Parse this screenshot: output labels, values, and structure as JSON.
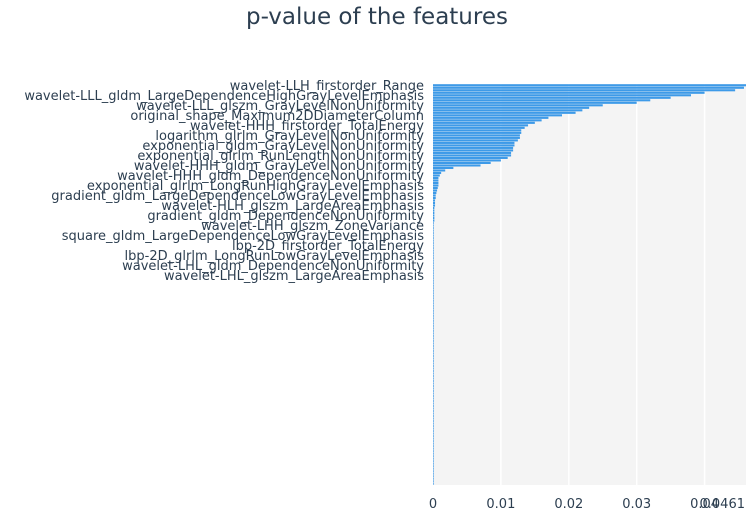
{
  "chart_data": {
    "type": "bar",
    "orientation": "horizontal",
    "title": "p-value of the features",
    "xlabel": "",
    "ylabel": "",
    "xlim": [
      0,
      0.0461
    ],
    "x_ticks": [
      "0",
      "0.01",
      "0.02",
      "0.03",
      "0.04",
      "0.0461"
    ],
    "x_tick_values": [
      0,
      0.01,
      0.02,
      0.03,
      0.04,
      0.0461
    ],
    "grid": "vertical",
    "colors": {
      "bar": "#3d9ae8",
      "plot_bg": "#f4f4f4",
      "grid": "#ffffff",
      "text": "#2c3e50"
    },
    "labeled_features": [
      "wavelet-LLH_firstorder_Range",
      "wavelet-LLL_gldm_LargeDependenceHighGrayLevelEmphasis",
      "wavelet-LLL_glszm_GrayLevelNonUniformity",
      "original_shape_Maximum2DDiameterColumn",
      "wavelet-HHH_firstorder_TotalEnergy",
      "logarithm_glrlm_GrayLevelNonUniformity",
      "exponential_gldm_GrayLevelNonUniformity",
      "exponential_glrlm_RunLengthNonUniformity",
      "wavelet-HHH_gldm_GrayLevelNonUniformity",
      "wavelet-HHH_gldm_DependenceNonUniformity",
      "exponential_glrlm_LongRunHighGrayLevelEmphasis",
      "gradient_gldm_LargeDependenceLowGrayLevelEmphasis",
      "wavelet-HLH_glszm_LargeAreaEmphasis",
      "gradient_gldm_DependenceNonUniformity",
      "wavelet-LHH_glszm_ZoneVariance",
      "square_gldm_LargeDependenceLowGrayLevelEmphasis",
      "lbp-2D_firstorder_TotalEnergy",
      "lbp-2D_glrlm_LongRunLowGrayLevelEmphasis",
      "wavelet-LHL_gldm_DependenceNonUniformity",
      "wavelet-LHL_glszm_LargeAreaEmphasis"
    ],
    "label_every": 4,
    "values": [
      0.0461,
      0.0458,
      0.0445,
      0.04,
      0.038,
      0.035,
      0.032,
      0.03,
      0.025,
      0.023,
      0.022,
      0.021,
      0.019,
      0.017,
      0.016,
      0.015,
      0.014,
      0.0135,
      0.013,
      0.013,
      0.0128,
      0.0128,
      0.0125,
      0.012,
      0.012,
      0.0118,
      0.0118,
      0.0115,
      0.0115,
      0.011,
      0.01,
      0.0085,
      0.007,
      0.003,
      0.0018,
      0.0012,
      0.001,
      0.0008,
      0.0008,
      0.0008,
      0.0008,
      0.0007,
      0.0006,
      0.0005,
      0.0004,
      0.0004,
      0.0003,
      0.0003,
      0.0003,
      0.0002,
      0.0002,
      0.0002,
      0.0002,
      0.0002,
      0.0002,
      0.0001,
      0.0001,
      0.0001,
      0.0001,
      0.0001,
      0.0001,
      0.0001,
      0.0001,
      0.0001,
      0.0001,
      0.0001,
      0.0001,
      0.0001,
      0.0001,
      0.0001,
      0.0001,
      0.0001,
      0.0001,
      0.0001,
      0.0001,
      0.0001,
      0.0001,
      0.0001,
      0.0001,
      0.0001,
      0.0001,
      0.0001,
      0.0001,
      0.0001,
      0.0001,
      0.0001,
      0.0001,
      0.0001,
      0.0001,
      0.0001,
      0.0001,
      0.0001,
      0.0001,
      0.0001,
      0.0001,
      0.0001,
      0.0001,
      0.0001,
      0.0001,
      0.0001,
      0.0001,
      0.0001,
      0.0001,
      0.0001,
      0.0001,
      0.0001,
      0.0001,
      0.0001,
      0.0001,
      0.0001,
      0.0001,
      0.0001,
      0.0001,
      0.0001,
      0.0001,
      0.0001,
      0.0001,
      0.0001,
      0.0001,
      0.0001,
      0.0001,
      0.0001,
      0.0001,
      0.0001,
      0.0001,
      0.0001,
      0.0001,
      0.0001,
      0.0001,
      0.0001,
      0.0001,
      0.0001,
      0.0001,
      0.0001,
      0.0001,
      0.0001,
      0.0001,
      0.0001,
      0.0001,
      0.0001,
      0.0001,
      0.0001,
      0.0001,
      0.0001,
      0.0001,
      0.0001,
      0.0001,
      0.0001,
      0.0001,
      0.0001,
      0.0001,
      0.0001,
      0.0001,
      0.0001,
      0.0001,
      0.0001,
      0.0001,
      0.0001,
      0.0001,
      0.0001
    ]
  }
}
